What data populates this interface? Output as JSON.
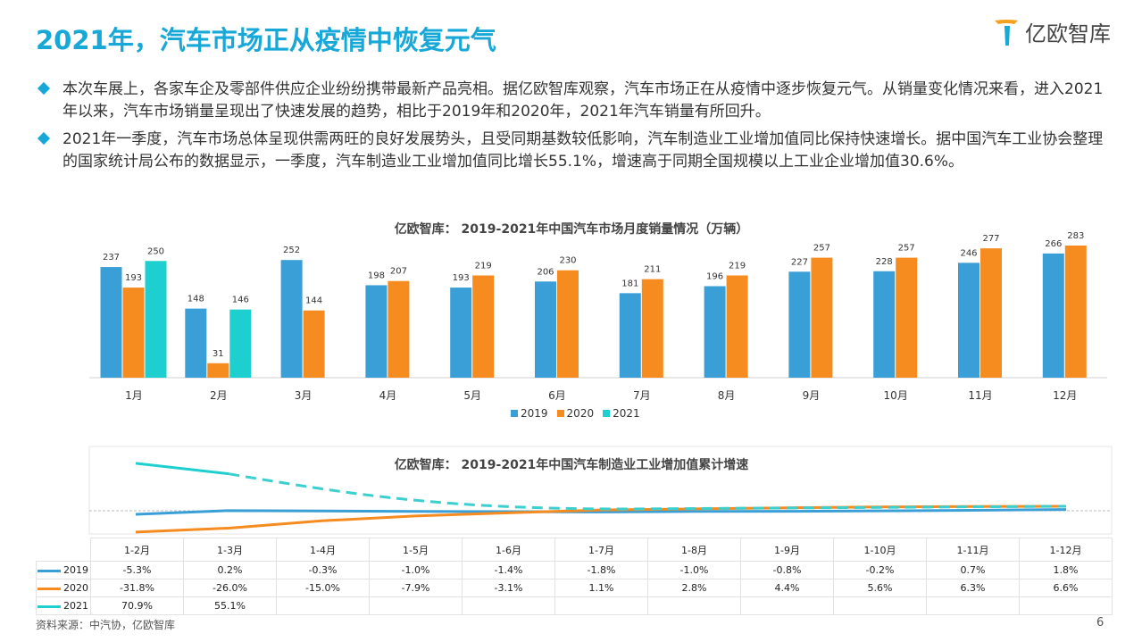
{
  "title": "2021年，汽车市场正从疫情中恢复元气",
  "logo": "亿欧智库",
  "bullets": [
    "本次车展上，各家车企及零部件供应企业纷纷携带最新产品亮相。据亿欧智库观察，汽车市场正在从疫情中逐步恢复元气。从销量变化情况来看，进入2021年以来，汽车市场销量呈现出了快速发展的趋势，相比于2019年和2020年，2021年汽车销量有所回升。",
    "2021年一季度，汽车市场总体呈现供需两旺的良好发展势头，且受同期基数较低影响，汽车制造业工业增加值同比保持快速增长。据中国汽车工业协会整理的国家统计局公布的数据显示，一季度，汽车制造业工业增加值同比增长55.1%，增速高于同期全国规模以上工业企业增加值30.6%。"
  ],
  "colors": {
    "2019": "#3a9fd6",
    "2020": "#f68b1f",
    "2021": "#1ecfcf",
    "title": "#18a8d8"
  },
  "chart_data": [
    {
      "type": "bar",
      "title": "亿欧智库： 2019-2021年中国汽车市场月度销量情况（万辆）",
      "categories": [
        "1月",
        "2月",
        "3月",
        "4月",
        "5月",
        "6月",
        "7月",
        "8月",
        "9月",
        "10月",
        "11月",
        "12月"
      ],
      "series": [
        {
          "name": "2019",
          "values": [
            237,
            148,
            252,
            198,
            193,
            206,
            181,
            196,
            227,
            228,
            246,
            266
          ]
        },
        {
          "name": "2020",
          "values": [
            193,
            31,
            144,
            207,
            219,
            230,
            211,
            219,
            257,
            257,
            277,
            283
          ]
        },
        {
          "name": "2021",
          "values": [
            250,
            146,
            null,
            null,
            null,
            null,
            null,
            null,
            null,
            null,
            null,
            null
          ]
        }
      ],
      "legend": "bottom"
    },
    {
      "type": "line",
      "title": "亿欧智库： 2019-2021年中国汽车制造业工业增加值累计增速",
      "categories": [
        "1-2月",
        "1-3月",
        "1-4月",
        "1-5月",
        "1-6月",
        "1-7月",
        "1-8月",
        "1-9月",
        "1-10月",
        "1-11月",
        "1-12月"
      ],
      "series": [
        {
          "name": "2019",
          "values": [
            "-5.3%",
            "0.2%",
            "-0.3%",
            "-1.0%",
            "-1.4%",
            "-1.8%",
            "-1.0%",
            "-0.8%",
            "-0.2%",
            "0.7%",
            "1.8%"
          ]
        },
        {
          "name": "2020",
          "values": [
            "-31.8%",
            "-26.0%",
            "-15.0%",
            "-7.9%",
            "-3.1%",
            "1.1%",
            "2.8%",
            "4.4%",
            "5.6%",
            "6.3%",
            "6.6%"
          ]
        },
        {
          "name": "2021",
          "values": [
            "70.9%",
            "55.1%",
            "",
            "",
            "",
            "",
            "",
            "",
            "",
            "",
            ""
          ]
        }
      ],
      "legend": "table"
    }
  ],
  "source": "资料来源：中汽协，亿欧智库",
  "page": "6"
}
